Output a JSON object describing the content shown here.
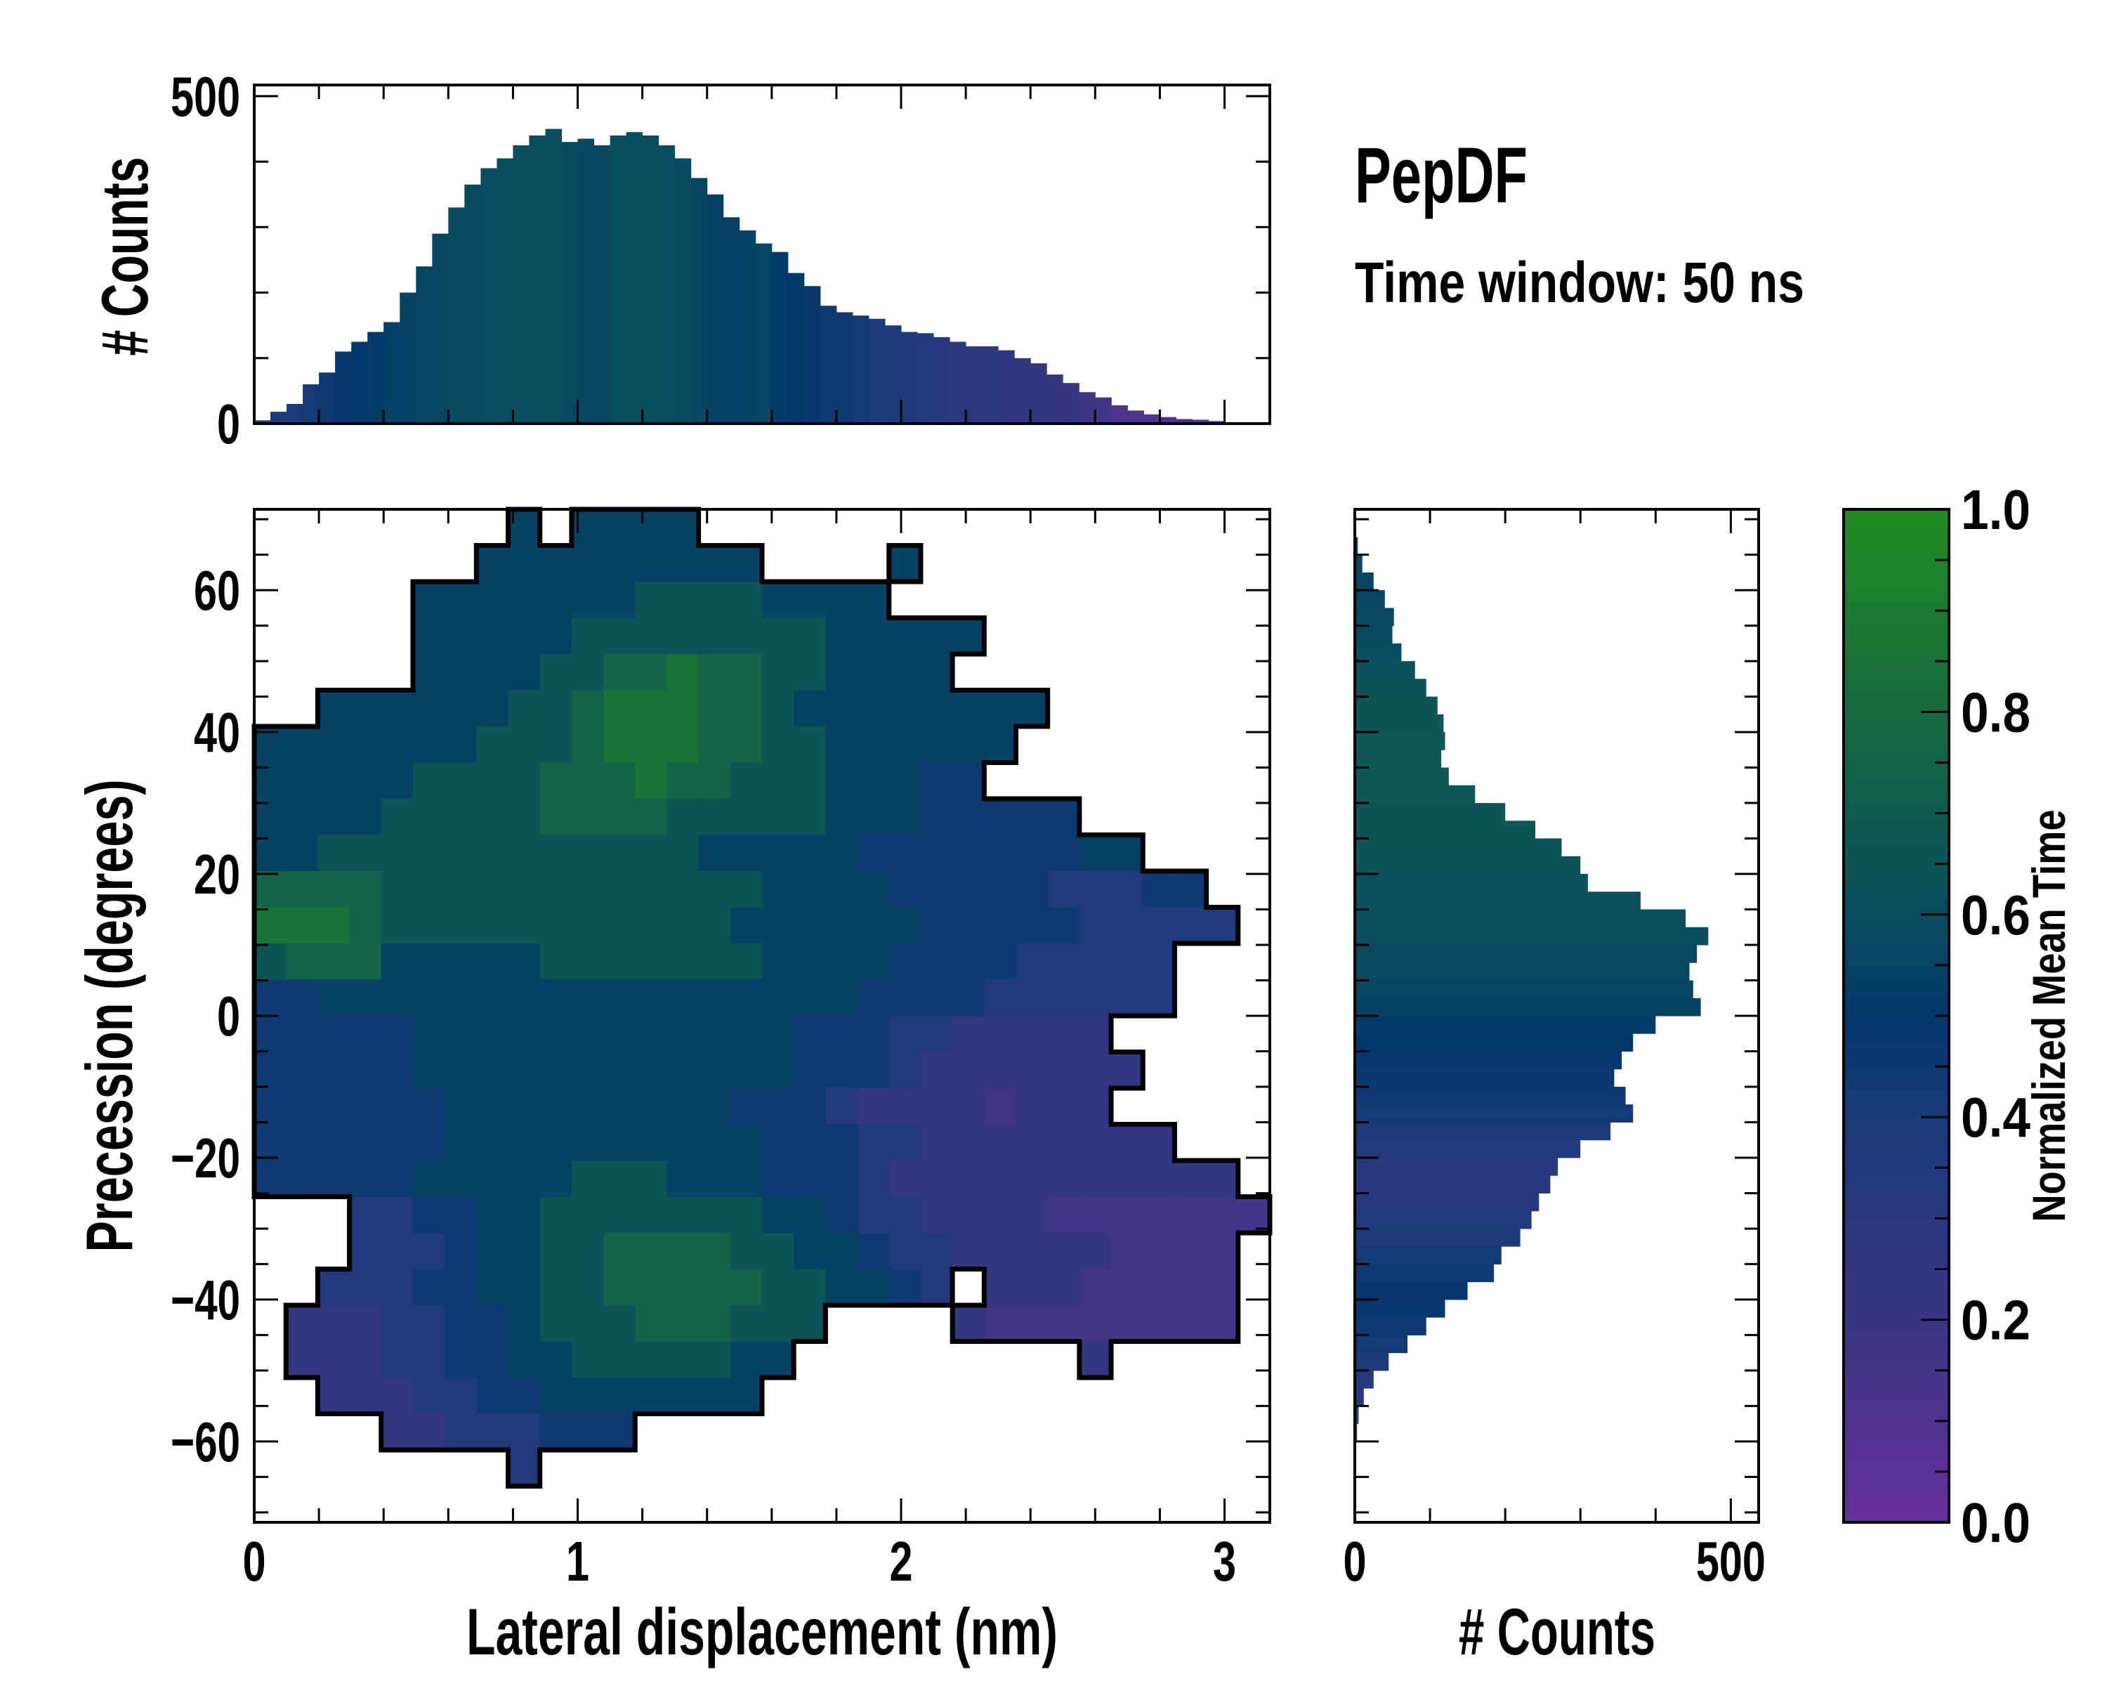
{
  "chart_data": [
    {
      "id": "main",
      "type": "heatmap",
      "title": "",
      "xlabel": "Lateral displacement (nm)",
      "ylabel": "Precession (degrees)",
      "xlim": [
        0,
        3.14
      ],
      "ylim": [
        -71.4,
        71.4
      ],
      "xticks": [
        0,
        1,
        2,
        3
      ],
      "xtick_labels": [
        "0",
        "1",
        "2",
        "3"
      ],
      "yticks": [
        60,
        40,
        20,
        0,
        -20,
        -40,
        -60
      ],
      "ytick_labels": [
        "60",
        "40",
        "20",
        "0",
        "−20",
        "−40",
        "−60"
      ],
      "grid_note": "cells = normalized mean time x10 (0-9), '.' = empty; rows top (71.4 deg) to bottom (-71.4 deg), 32 columns over 0-3.14 nm",
      "grid": [
        "........5.5555..................",
        ".......555555555....5...........",
        ".....555555566665555............",
        ".....555556666666655555.........",
        ".....55556677877665555..........",
        "..55555566788877655555555.......",
        "555555566678887766555555........",
        "55555666677787766655544.........",
        "55556666677776666655544444......",
        "5566666666666655555444444455....",
        "777766666666666655554444433344..",
        "8887666666666665555554444433333.",
        "67775555566666665555444433333...",
        "44555555555555555554444333333...",
        "444445555555555554443322222.....",
        "4444455555555555544432222222....",
        "444444555555555444322221222.....",
        "44444455555555554443322222222...",
        "4444455555666555444322222222222.",
        "...334455666666655433222211111111",
        "...3334556677776655433222221111.",
        "..33344556677777665543.22211111.",
        ".22233445666777666....211111111.",
        ".2223344556666655.........2.....",
        "..22233445555555................",
        "....22333444....................",
        "........3.......................",
        "................................"
      ]
    },
    {
      "id": "top-hist",
      "type": "bar",
      "ylabel": "# Counts",
      "ylim": [
        0,
        517
      ],
      "yticks": [
        0,
        500
      ],
      "ytick_labels": [
        "0",
        "500"
      ],
      "bin_width": 0.05,
      "x_start": 0,
      "values": [
        5,
        18,
        30,
        60,
        78,
        110,
        125,
        140,
        155,
        200,
        240,
        290,
        330,
        365,
        390,
        405,
        425,
        440,
        450,
        430,
        435,
        425,
        440,
        445,
        440,
        425,
        405,
        375,
        350,
        315,
        295,
        275,
        262,
        230,
        210,
        180,
        170,
        165,
        160,
        150,
        140,
        138,
        132,
        125,
        118,
        118,
        112,
        100,
        92,
        75,
        62,
        48,
        40,
        28,
        20,
        14,
        10,
        7,
        6,
        4,
        2,
        1
      ],
      "mean_time": [
        0.35,
        0.38,
        0.4,
        0.42,
        0.45,
        0.48,
        0.5,
        0.52,
        0.54,
        0.55,
        0.56,
        0.57,
        0.58,
        0.58,
        0.59,
        0.6,
        0.6,
        0.6,
        0.6,
        0.58,
        0.57,
        0.57,
        0.6,
        0.6,
        0.6,
        0.59,
        0.58,
        0.57,
        0.55,
        0.54,
        0.55,
        0.56,
        0.52,
        0.5,
        0.47,
        0.45,
        0.44,
        0.42,
        0.4,
        0.38,
        0.36,
        0.34,
        0.32,
        0.3,
        0.3,
        0.28,
        0.27,
        0.26,
        0.24,
        0.22,
        0.2,
        0.18,
        0.15,
        0.12,
        0.12,
        0.1,
        0.1,
        0.1,
        0.1,
        0.1,
        0.1,
        0.1
      ]
    },
    {
      "id": "right-hist",
      "type": "bar",
      "orientation": "horizontal",
      "xlabel": "# Counts",
      "xlim": [
        0,
        537
      ],
      "xticks": [
        0,
        500
      ],
      "xtick_labels": [
        "0",
        "500"
      ],
      "bin_width": 2.5,
      "y_start": 70,
      "values": [
        1,
        4,
        10,
        25,
        40,
        52,
        50,
        62,
        80,
        95,
        110,
        118,
        120,
        115,
        125,
        160,
        200,
        240,
        275,
        300,
        310,
        380,
        440,
        470,
        455,
        445,
        450,
        460,
        400,
        370,
        355,
        345,
        360,
        370,
        340,
        300,
        270,
        260,
        245,
        235,
        220,
        195,
        185,
        150,
        120,
        95,
        70,
        45,
        25,
        12,
        5,
        3,
        1
      ],
      "mean_time": [
        0.55,
        0.55,
        0.56,
        0.56,
        0.57,
        0.58,
        0.58,
        0.6,
        0.62,
        0.64,
        0.66,
        0.66,
        0.67,
        0.67,
        0.67,
        0.67,
        0.66,
        0.66,
        0.65,
        0.64,
        0.63,
        0.62,
        0.6,
        0.6,
        0.58,
        0.58,
        0.57,
        0.55,
        0.52,
        0.5,
        0.48,
        0.46,
        0.45,
        0.42,
        0.38,
        0.34,
        0.32,
        0.32,
        0.33,
        0.35,
        0.38,
        0.42,
        0.45,
        0.47,
        0.48,
        0.45,
        0.42,
        0.38,
        0.33,
        0.3,
        0.28,
        0.25,
        0.25
      ]
    },
    {
      "id": "colorbar",
      "type": "colorbar",
      "label": "Normalized Mean Time",
      "range": [
        0,
        1
      ],
      "ticks": [
        0,
        0.2,
        0.4,
        0.6,
        0.8,
        1.0
      ],
      "tick_labels": [
        "0.0",
        "0.2",
        "0.4",
        "0.6",
        "0.8",
        "1.0"
      ],
      "colors": [
        {
          "v": 0.0,
          "c": "#65309a"
        },
        {
          "v": 0.2,
          "c": "#3a3682"
        },
        {
          "v": 0.4,
          "c": "#1a3a78"
        },
        {
          "v": 0.5,
          "c": "#03376a"
        },
        {
          "v": 0.6,
          "c": "#0a4d5e"
        },
        {
          "v": 0.8,
          "c": "#166a40"
        },
        {
          "v": 1.0,
          "c": "#228b22"
        }
      ]
    }
  ],
  "annotations": {
    "title": "PepDF",
    "subtitle": "Time window: 50 ns"
  }
}
